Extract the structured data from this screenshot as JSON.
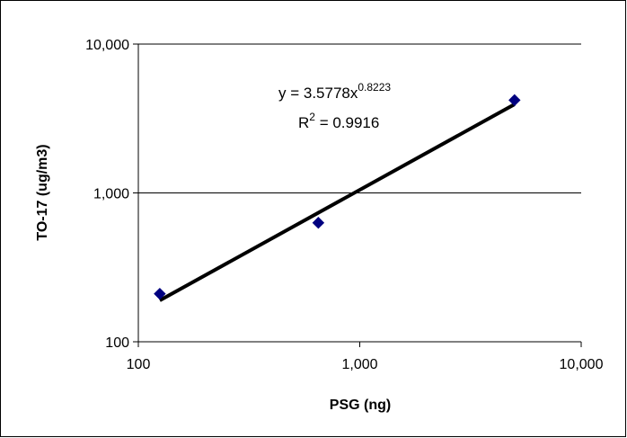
{
  "chart_data": {
    "type": "scatter",
    "title": "",
    "xlabel": "PSG (ng)",
    "ylabel": "TO-17 (ug/m3)",
    "xscale": "log",
    "yscale": "log",
    "xlim": [
      100,
      10000
    ],
    "ylim": [
      100,
      10000
    ],
    "x_ticks": [
      100,
      1000,
      10000
    ],
    "y_ticks": [
      100,
      1000,
      10000
    ],
    "x_tick_labels": [
      "100",
      "1,000",
      "10,000"
    ],
    "y_tick_labels": [
      "100",
      "1,000",
      "10,000"
    ],
    "grid": "horizontal major gridlines",
    "legend": "none",
    "series": [
      {
        "marker": "diamond",
        "color": "#000080",
        "x": [
          125,
          650,
          5000
        ],
        "y": [
          210,
          630,
          4200
        ]
      }
    ],
    "trendline": {
      "type": "power",
      "a": 3.5778,
      "b": 0.8223,
      "x_range": [
        125,
        5000
      ],
      "color": "#000000"
    },
    "annotations": {
      "equation_prefix": "y = 3.5778x",
      "equation_exponent": "0.8223",
      "r2_prefix": "R",
      "r2_exponent": "2",
      "r2_suffix": " = 0.9916"
    }
  }
}
